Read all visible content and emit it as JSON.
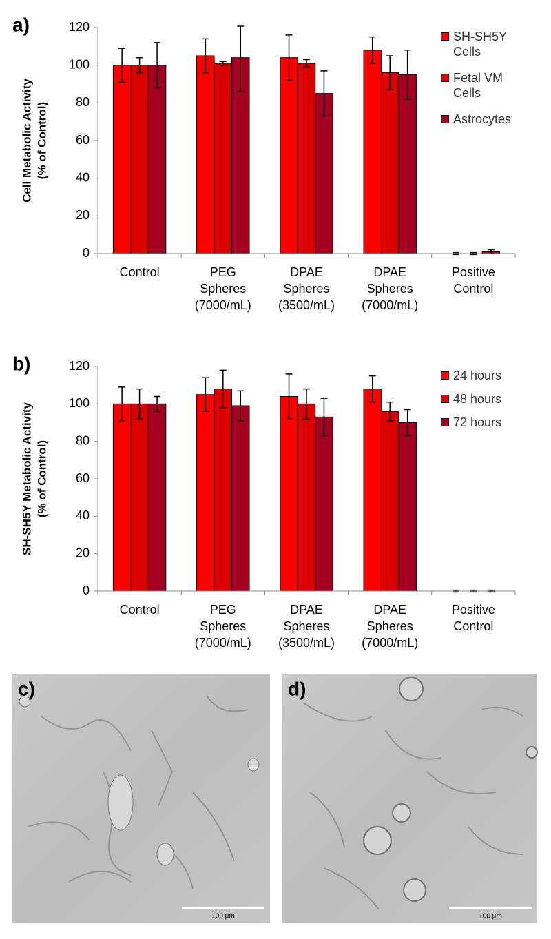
{
  "chart_data": [
    {
      "type": "bar",
      "panel_label": "a)",
      "y_label": [
        "Cell Metabolic Activity",
        "(% of Control)"
      ],
      "categories": [
        [
          "Control"
        ],
        [
          "PEG",
          "Spheres",
          "(7000/mL)"
        ],
        [
          "DPAE",
          "Spheres",
          "(3500/mL)"
        ],
        [
          "DPAE",
          "Spheres",
          "(7000/mL)"
        ],
        [
          "Positive",
          "Control"
        ]
      ],
      "series": [
        {
          "name": "SH-SH5Y Cells",
          "color": "#ff0000",
          "values": [
            100,
            105,
            104,
            108,
            0
          ],
          "errors": [
            9,
            9,
            12,
            7,
            0.5
          ]
        },
        {
          "name": "Fetal VM Cells",
          "color": "#dd0000",
          "values": [
            100,
            101,
            101,
            96,
            0
          ],
          "errors": [
            4,
            1,
            2,
            9,
            0.5
          ]
        },
        {
          "name": "Astrocytes",
          "color": "#a50021",
          "values": [
            100,
            104,
            85,
            95,
            1
          ],
          "errors": [
            12,
            18,
            12,
            13,
            1
          ]
        }
      ],
      "ylim": [
        0,
        120
      ],
      "yticks": [
        0,
        20,
        40,
        60,
        80,
        100,
        120
      ],
      "grid": false,
      "legend": "upper right"
    },
    {
      "type": "bar",
      "panel_label": "b)",
      "y_label": [
        "SH-SH5Y  Metabolic Activity",
        "(% of Control)"
      ],
      "categories": [
        [
          "Control"
        ],
        [
          "PEG",
          "Spheres",
          "(7000/mL)"
        ],
        [
          "DPAE",
          "Spheres",
          "(3500/mL)"
        ],
        [
          "DPAE",
          "Spheres",
          "(7000/mL)"
        ],
        [
          "Positive",
          "Control"
        ]
      ],
      "series": [
        {
          "name": "24 hours",
          "color": "#ff0000",
          "values": [
            100,
            105,
            104,
            108,
            0
          ],
          "errors": [
            9,
            9,
            12,
            7,
            0.5
          ]
        },
        {
          "name": "48 hours",
          "color": "#dd0000",
          "values": [
            100,
            108,
            100,
            96,
            0
          ],
          "errors": [
            8,
            10,
            8,
            5,
            0.5
          ]
        },
        {
          "name": "72 hours",
          "color": "#a50021",
          "values": [
            100,
            99,
            93,
            90,
            0
          ],
          "errors": [
            4,
            8,
            10,
            7,
            0.5
          ]
        }
      ],
      "ylim": [
        0,
        120
      ],
      "yticks": [
        0,
        20,
        40,
        60,
        80,
        100,
        120
      ],
      "grid": false,
      "legend": "upper right"
    }
  ],
  "images": [
    {
      "label": "c)",
      "scale_bar": "100 µm"
    },
    {
      "label": "d)",
      "scale_bar": "100 µm"
    }
  ]
}
